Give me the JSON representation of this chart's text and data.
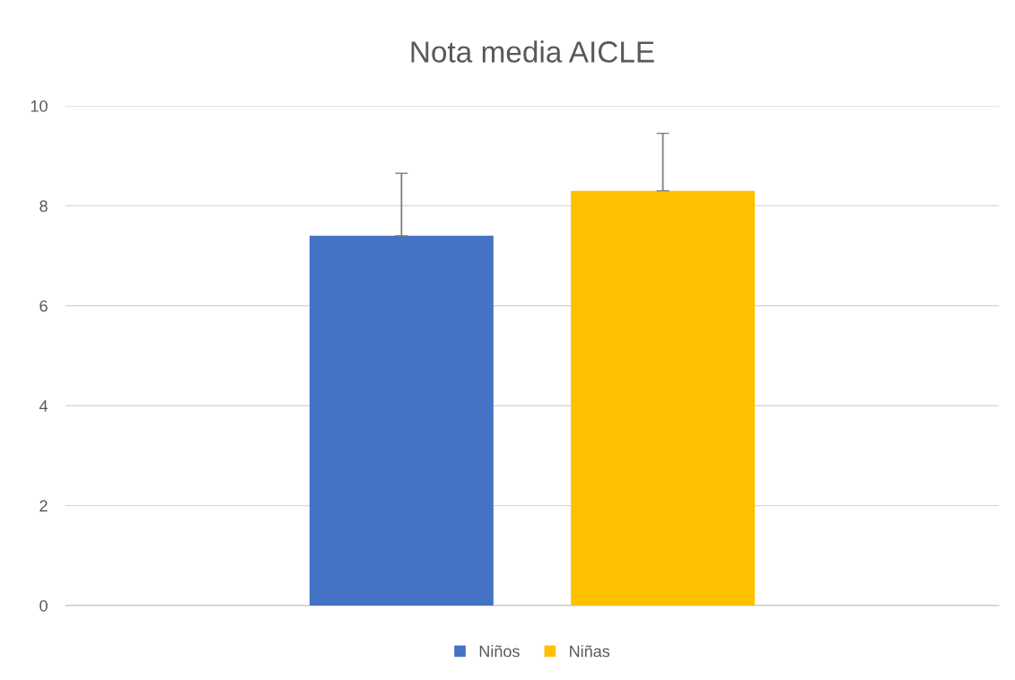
{
  "chart_data": {
    "type": "bar",
    "title": "Nota media AICLE",
    "categories": [
      null
    ],
    "series": [
      {
        "name": "Niños",
        "color": "#4472c4",
        "values": [
          7.4
        ],
        "errors": [
          [
            7.4,
            8.65
          ]
        ]
      },
      {
        "name": "Niñas",
        "color": "#ffc000",
        "values": [
          8.3
        ],
        "errors": [
          [
            8.3,
            9.45
          ]
        ]
      }
    ],
    "ylim": [
      0,
      10
    ],
    "yticks": [
      0,
      2,
      4,
      6,
      8,
      10
    ],
    "grid": "y",
    "legend": "bottom"
  }
}
